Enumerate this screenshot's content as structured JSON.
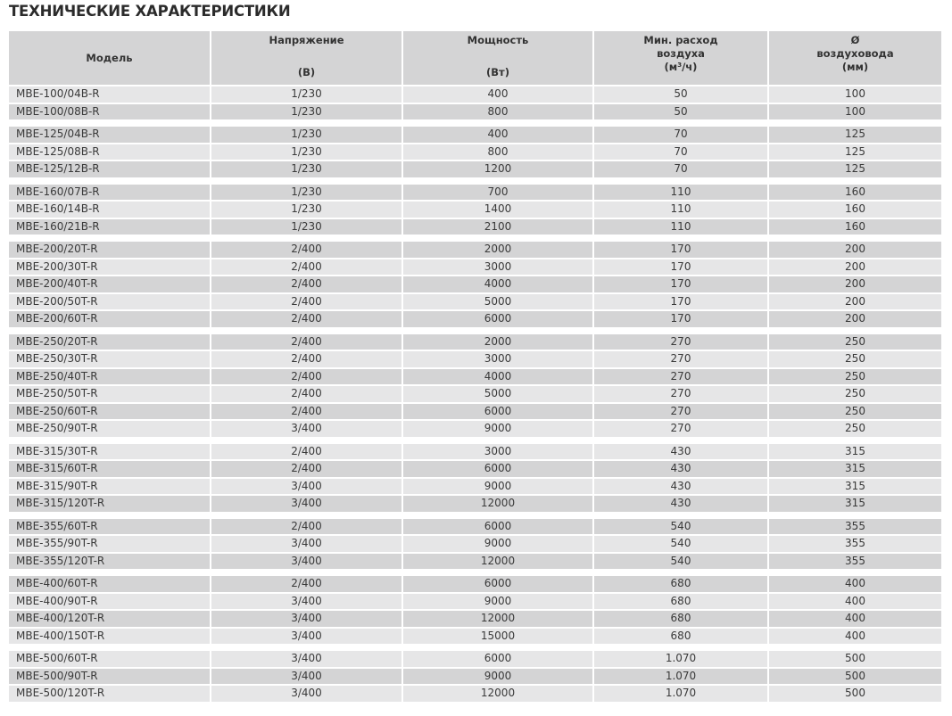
{
  "title": "ТЕХНИЧЕСКИЕ ХАРАКТЕРИСТИКИ",
  "colors": {
    "header_bg": "#d4d4d5",
    "row_light": "#e6e6e7",
    "row_dark": "#d4d4d5"
  },
  "headers": {
    "model": "Модель",
    "voltage": {
      "label": "Напряжение",
      "unit": "(В)"
    },
    "power": {
      "label": "Мощность",
      "unit": "(Вт)"
    },
    "airflow": {
      "line1": "Мин. расход",
      "line2": "воздуха",
      "unit_pre": "(м",
      "unit_sup": "3",
      "unit_post": "/ч)"
    },
    "duct": {
      "line1": "Ø",
      "line2": "воздуховода",
      "unit": "(мм)"
    }
  },
  "groups": [
    {
      "first_row_light": true,
      "rows": [
        [
          "MBE-100/04B-R",
          "1/230",
          "400",
          "50",
          "100"
        ],
        [
          "MBE-100/08B-R",
          "1/230",
          "800",
          "50",
          "100"
        ]
      ]
    },
    {
      "first_row_light": false,
      "rows": [
        [
          "MBE-125/04B-R",
          "1/230",
          "400",
          "70",
          "125"
        ],
        [
          "MBE-125/08B-R",
          "1/230",
          "800",
          "70",
          "125"
        ],
        [
          "MBE-125/12B-R",
          "1/230",
          "1200",
          "70",
          "125"
        ]
      ]
    },
    {
      "first_row_light": false,
      "rows": [
        [
          "MBE-160/07B-R",
          "1/230",
          "700",
          "110",
          "160"
        ],
        [
          "MBE-160/14B-R",
          "1/230",
          "1400",
          "110",
          "160"
        ],
        [
          "MBE-160/21B-R",
          "1/230",
          "2100",
          "110",
          "160"
        ]
      ]
    },
    {
      "first_row_light": false,
      "rows": [
        [
          "MBE-200/20T-R",
          "2/400",
          "2000",
          "170",
          "200"
        ],
        [
          "MBE-200/30T-R",
          "2/400",
          "3000",
          "170",
          "200"
        ],
        [
          "MBE-200/40T-R",
          "2/400",
          "4000",
          "170",
          "200"
        ],
        [
          "MBE-200/50T-R",
          "2/400",
          "5000",
          "170",
          "200"
        ],
        [
          "MBE-200/60T-R",
          "2/400",
          "6000",
          "170",
          "200"
        ]
      ]
    },
    {
      "first_row_light": false,
      "rows": [
        [
          "MBE-250/20T-R",
          "2/400",
          "2000",
          "270",
          "250"
        ],
        [
          "MBE-250/30T-R",
          "2/400",
          "3000",
          "270",
          "250"
        ],
        [
          "MBE-250/40T-R",
          "2/400",
          "4000",
          "270",
          "250"
        ],
        [
          "MBE-250/50T-R",
          "2/400",
          "5000",
          "270",
          "250"
        ],
        [
          "MBE-250/60T-R",
          "2/400",
          "6000",
          "270",
          "250"
        ],
        [
          "MBE-250/90T-R",
          "3/400",
          "9000",
          "270",
          "250"
        ]
      ]
    },
    {
      "first_row_light": true,
      "rows": [
        [
          "MBE-315/30T-R",
          "2/400",
          "3000",
          "430",
          "315"
        ],
        [
          "MBE-315/60T-R",
          "2/400",
          "6000",
          "430",
          "315"
        ],
        [
          "MBE-315/90T-R",
          "3/400",
          "9000",
          "430",
          "315"
        ],
        [
          "MBE-315/120T-R",
          "3/400",
          "12000",
          "430",
          "315"
        ]
      ]
    },
    {
      "first_row_light": false,
      "rows": [
        [
          "MBE-355/60T-R",
          "2/400",
          "6000",
          "540",
          "355"
        ],
        [
          "MBE-355/90T-R",
          "3/400",
          "9000",
          "540",
          "355"
        ],
        [
          "MBE-355/120T-R",
          "3/400",
          "12000",
          "540",
          "355"
        ]
      ]
    },
    {
      "first_row_light": false,
      "rows": [
        [
          "MBE-400/60T-R",
          "2/400",
          "6000",
          "680",
          "400"
        ],
        [
          "MBE-400/90T-R",
          "3/400",
          "9000",
          "680",
          "400"
        ],
        [
          "MBE-400/120T-R",
          "3/400",
          "12000",
          "680",
          "400"
        ],
        [
          "MBE-400/150T-R",
          "3/400",
          "15000",
          "680",
          "400"
        ]
      ]
    },
    {
      "first_row_light": true,
      "rows": [
        [
          "MBE-500/60T-R",
          "3/400",
          "6000",
          "1.070",
          "500"
        ],
        [
          "MBE-500/90T-R",
          "3/400",
          "9000",
          "1.070",
          "500"
        ],
        [
          "MBE-500/120T-R",
          "3/400",
          "12000",
          "1.070",
          "500"
        ]
      ]
    }
  ]
}
